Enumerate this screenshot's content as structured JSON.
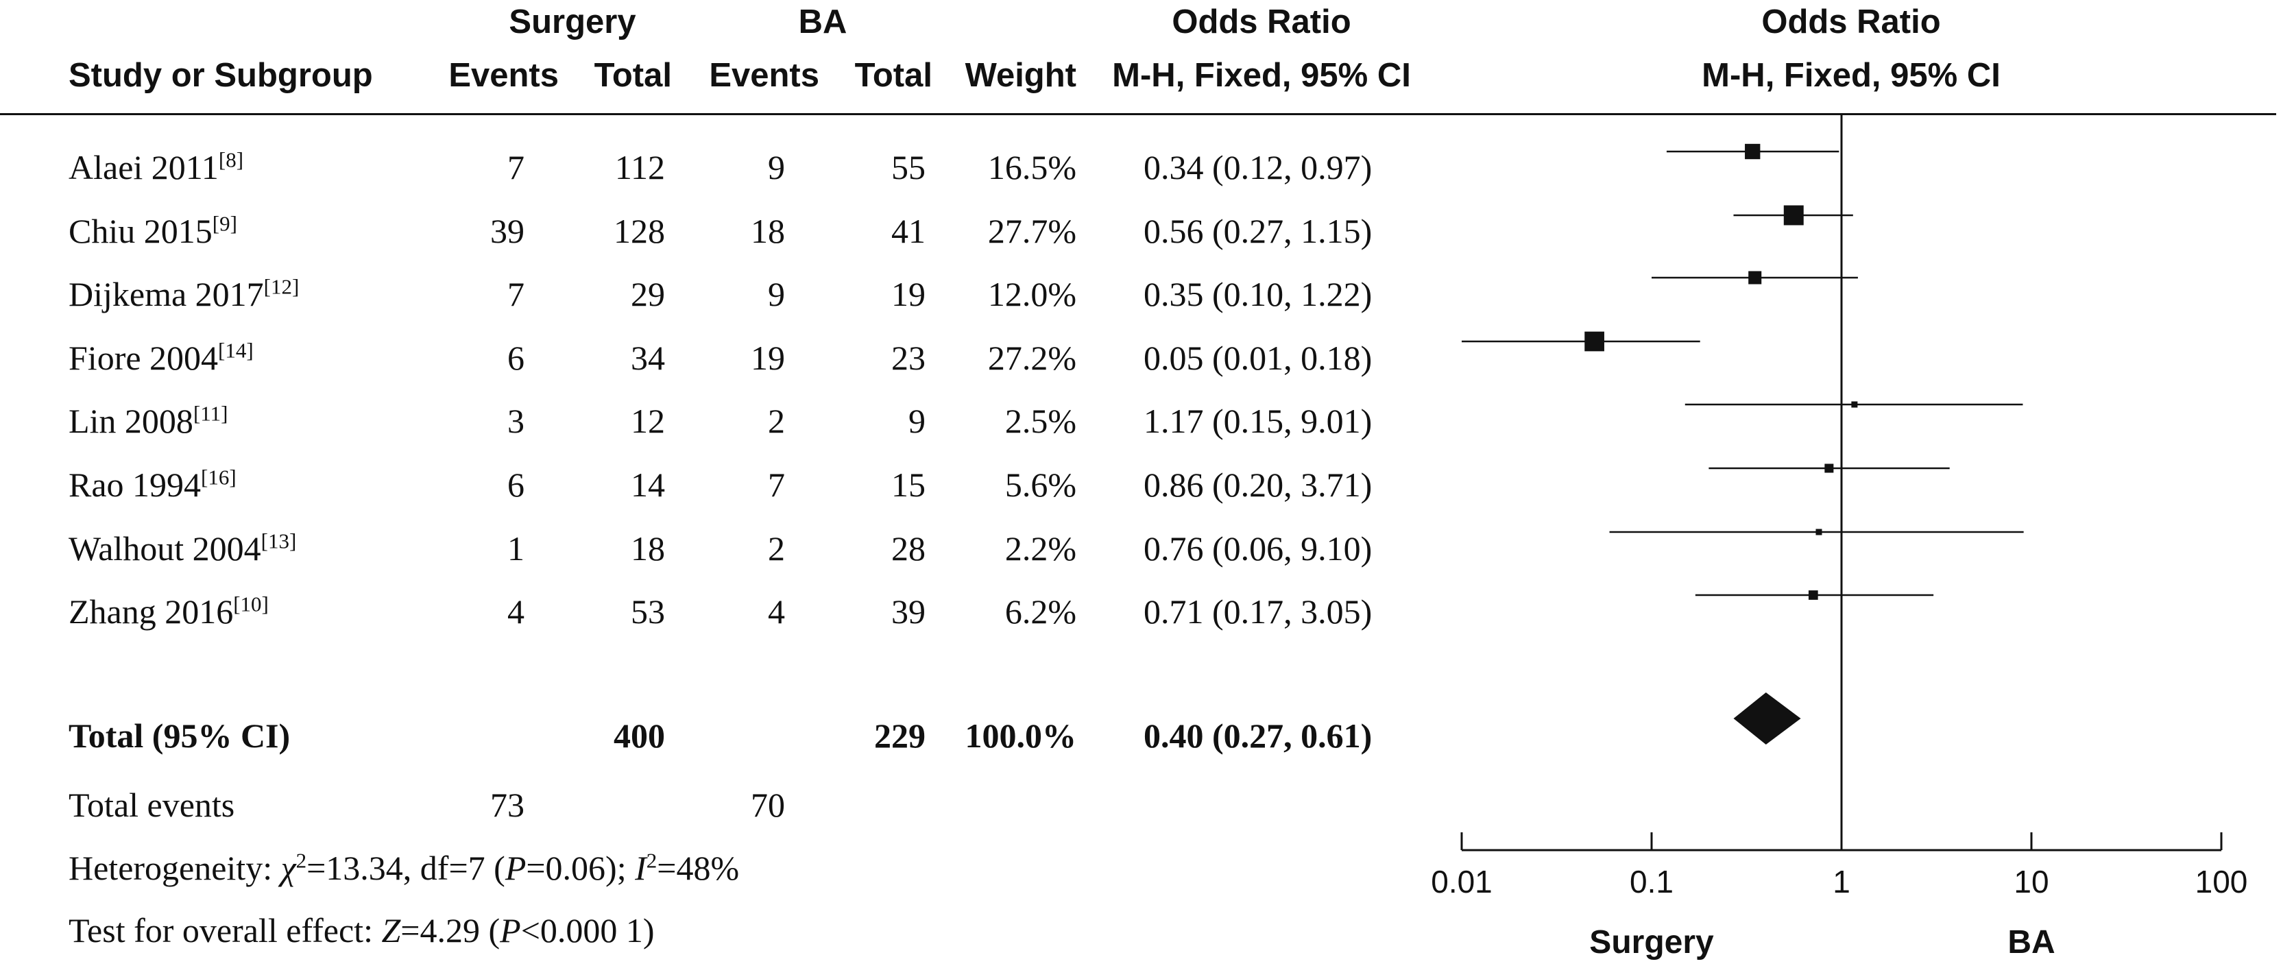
{
  "header": {
    "group1": "Surgery",
    "group2": "BA",
    "or_title": "Odds Ratio",
    "or_method": "M-H, Fixed, 95% CI",
    "plot_title": "Odds Ratio",
    "plot_method": "M-H, Fixed, 95% CI",
    "col_study": "Study or Subgroup",
    "col_events1": "Events",
    "col_total1": "Total",
    "col_events2": "Events",
    "col_total2": "Total",
    "col_weight": "Weight"
  },
  "studies": [
    {
      "name": "Alaei 2011",
      "ref": "[8]",
      "events1": "7",
      "total1": "112",
      "events2": "9",
      "total2": "55",
      "weight": "16.5%",
      "ci_text": "0.34 (0.12, 0.97)"
    },
    {
      "name": "Chiu 2015",
      "ref": "[9]",
      "events1": "39",
      "total1": "128",
      "events2": "18",
      "total2": "41",
      "weight": "27.7%",
      "ci_text": "0.56 (0.27, 1.15)"
    },
    {
      "name": "Dijkema 2017",
      "ref": "[12]",
      "events1": "7",
      "total1": "29",
      "events2": "9",
      "total2": "19",
      "weight": "12.0%",
      "ci_text": "0.35 (0.10, 1.22)"
    },
    {
      "name": "Fiore 2004",
      "ref": "[14]",
      "events1": "6",
      "total1": "34",
      "events2": "19",
      "total2": "23",
      "weight": "27.2%",
      "ci_text": "0.05 (0.01, 0.18)"
    },
    {
      "name": "Lin 2008",
      "ref": "[11]",
      "events1": "3",
      "total1": "12",
      "events2": "2",
      "total2": "9",
      "weight": "2.5%",
      "ci_text": "1.17 (0.15, 9.01)"
    },
    {
      "name": "Rao 1994",
      "ref": "[16]",
      "events1": "6",
      "total1": "14",
      "events2": "7",
      "total2": "15",
      "weight": "5.6%",
      "ci_text": "0.86 (0.20, 3.71)"
    },
    {
      "name": "Walhout 2004",
      "ref": "[13]",
      "events1": "1",
      "total1": "18",
      "events2": "2",
      "total2": "28",
      "weight": "2.2%",
      "ci_text": "0.76 (0.06, 9.10)"
    },
    {
      "name": "Zhang 2016",
      "ref": "[10]",
      "events1": "4",
      "total1": "53",
      "events2": "4",
      "total2": "39",
      "weight": "6.2%",
      "ci_text": "0.71 (0.17, 3.05)"
    }
  ],
  "total_row": {
    "label": "Total (95% CI)",
    "total1": "400",
    "total2": "229",
    "weight": "100.0%",
    "ci_text": "0.40 (0.27, 0.61)"
  },
  "total_events": {
    "label": "Total events",
    "events1": "73",
    "events2": "70"
  },
  "heterogeneity": {
    "prefix": "Heterogeneity: ",
    "chi_symbol": "χ",
    "chi_sup": "2",
    "chi_value": "=13.34, df=7 (",
    "p_symbol": "P",
    "p_value": "=0.06); ",
    "i_symbol": "I",
    "i_sup": "2",
    "i_value": "=48%"
  },
  "overall_effect": {
    "prefix": "Test for overall effect: ",
    "z_symbol": "Z",
    "z_value": "=4.29 (",
    "p_symbol": "P",
    "p_value": "<0.000 1)"
  },
  "axis": {
    "favours_left": "Surgery",
    "favours_right": "BA"
  },
  "chart_data": {
    "type": "scatter",
    "scale": "log",
    "xlim": [
      0.01,
      100
    ],
    "ticks": [
      0.01,
      0.1,
      1,
      10,
      100
    ],
    "tick_labels": [
      "0.01",
      "0.1",
      "1",
      "10",
      "100"
    ],
    "reference_line": 1,
    "points": [
      {
        "study": "Alaei 2011",
        "or": 0.34,
        "lo": 0.12,
        "hi": 0.97,
        "weight": 16.5
      },
      {
        "study": "Chiu 2015",
        "or": 0.56,
        "lo": 0.27,
        "hi": 1.15,
        "weight": 27.7
      },
      {
        "study": "Dijkema 2017",
        "or": 0.35,
        "lo": 0.1,
        "hi": 1.22,
        "weight": 12.0
      },
      {
        "study": "Fiore 2004",
        "or": 0.05,
        "lo": 0.01,
        "hi": 0.18,
        "weight": 27.2
      },
      {
        "study": "Lin 2008",
        "or": 1.17,
        "lo": 0.15,
        "hi": 9.01,
        "weight": 2.5
      },
      {
        "study": "Rao 1994",
        "or": 0.86,
        "lo": 0.2,
        "hi": 3.71,
        "weight": 5.6
      },
      {
        "study": "Walhout 2004",
        "or": 0.76,
        "lo": 0.06,
        "hi": 9.1,
        "weight": 2.2
      },
      {
        "study": "Zhang 2016",
        "or": 0.71,
        "lo": 0.17,
        "hi": 3.05,
        "weight": 6.2
      }
    ],
    "pooled": {
      "or": 0.4,
      "lo": 0.27,
      "hi": 0.61
    },
    "colors": {
      "ink": "#111111",
      "background": "#ffffff"
    }
  }
}
